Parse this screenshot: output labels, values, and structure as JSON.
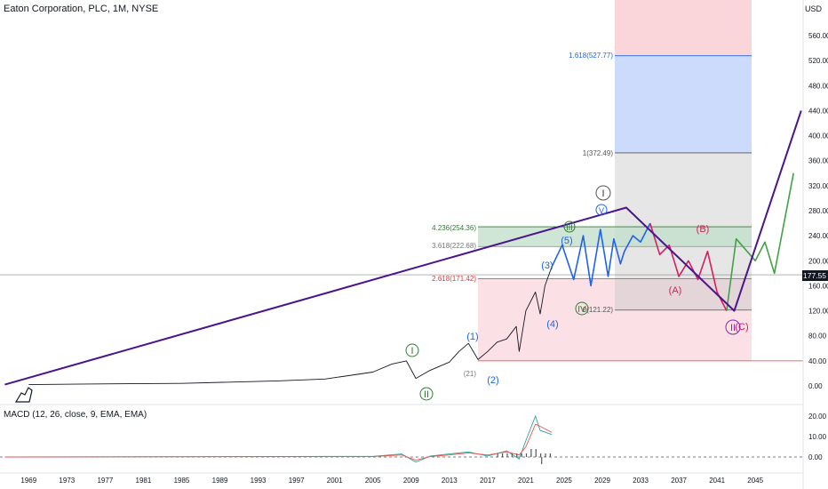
{
  "header": {
    "symbol_line": "Eaton Corporation, PLC, 1M, NYSE",
    "currency": "USD"
  },
  "macd": {
    "label": "MACD (12, 26, close, 9, EMA, EMA)",
    "ticks": [
      "20.00",
      "10.00",
      "0.00"
    ]
  },
  "price_badge": "177.55",
  "colors": {
    "trend_line": "#4a148c",
    "projection_blue": "#1e63e9",
    "projection_red": "#d81b60",
    "projection_green": "#43a047",
    "fib_green_label": "#2e7d32",
    "fib_red_label": "#e53935",
    "fib_blue_label": "#1e63e9",
    "fib_gray_label": "#555555"
  },
  "fib_labels": {
    "f1618": "1.618(527.77)",
    "f1": "1(372.49)",
    "f4236": "4.236(254.36)",
    "f3618": "3.618(222.68)",
    "f2618": "2.618(171.42)",
    "f0a": "0(121.22)",
    "f0b": "(21)"
  },
  "wave_labels": {
    "I_green": "I",
    "II_green": "II",
    "w1": "(1)",
    "w2": "(2)",
    "w3": "(3)",
    "w4": "(4)",
    "w5": "(5)",
    "III_green": "III",
    "IV_green": "IV",
    "I_dark": "I",
    "V_blue": "V",
    "A_red": "(A)",
    "B_red": "(B)",
    "C_red": "(C)",
    "II_purple": "II"
  },
  "chart_data": {
    "type": "line",
    "title": "Eaton Corporation, PLC, 1M, NYSE",
    "ylabel": "USD",
    "x_ticks": [
      "1969",
      "1973",
      "1977",
      "1981",
      "1985",
      "1989",
      "1993",
      "1997",
      "2001",
      "2005",
      "2009",
      "2013",
      "2017",
      "2021",
      "2025",
      "2029",
      "2033",
      "2037",
      "2041",
      "2045"
    ],
    "y_ticks": [
      "560.00",
      "520.00",
      "480.00",
      "440.00",
      "400.00",
      "360.00",
      "320.00",
      "280.00",
      "240.00",
      "200.00",
      "160.00",
      "120.00",
      "80.00",
      "40.00",
      "0.00"
    ],
    "ylim": [
      -20,
      580
    ],
    "xlim": [
      1966,
      2050
    ],
    "series": [
      {
        "x": [
          1969,
          1975,
          1985,
          1995,
          2000,
          2005,
          2007,
          2008.5,
          2009.5,
          2011,
          2013,
          2014,
          2015,
          2016,
          2017,
          2018,
          2019,
          2020,
          2020.3,
          2021,
          2022,
          2022.5,
          2023,
          2023.7
        ],
        "y": [
          2,
          3,
          4,
          8,
          11,
          22,
          35,
          40,
          12,
          25,
          38,
          55,
          68,
          42,
          55,
          70,
          75,
          95,
          55,
          120,
          150,
          115,
          160,
          190
        ]
      },
      {
        "x": [
          2023.7,
          2024.8,
          2026,
          2027,
          2027.8,
          2028.8,
          2029.6,
          2030.2,
          2030.9,
          2031.3,
          2032.2,
          2033,
          2034
        ],
        "y": [
          190,
          225,
          170,
          240,
          160,
          250,
          175,
          235,
          195,
          215,
          240,
          230,
          260
        ]
      },
      {
        "x": [
          2034,
          2035,
          2036,
          2037,
          2038,
          2039,
          2040,
          2041,
          2042
        ],
        "y": [
          260,
          210,
          225,
          175,
          200,
          170,
          215,
          150,
          120
        ]
      },
      {
        "x": [
          2042,
          2043,
          2045,
          2046,
          2047,
          2049
        ],
        "y": [
          120,
          235,
          200,
          230,
          180,
          340
        ]
      },
      {
        "x": [
          1966.5,
          2031.5,
          2042.8,
          2049.8
        ],
        "y": [
          2,
          285,
          120,
          440
        ]
      }
    ],
    "fib_levels": [
      {
        "label": "1.618(527.77)",
        "value": 527.77
      },
      {
        "label": "1(372.49)",
        "value": 372.49
      },
      {
        "label": "4.236(254.36)",
        "value": 254.36
      },
      {
        "label": "3.618(222.68)",
        "value": 222.68
      },
      {
        "label": "2.618(171.42)",
        "value": 171.42
      },
      {
        "label": "0(121.22)",
        "value": 121.22
      }
    ],
    "current_price": 177.55
  }
}
